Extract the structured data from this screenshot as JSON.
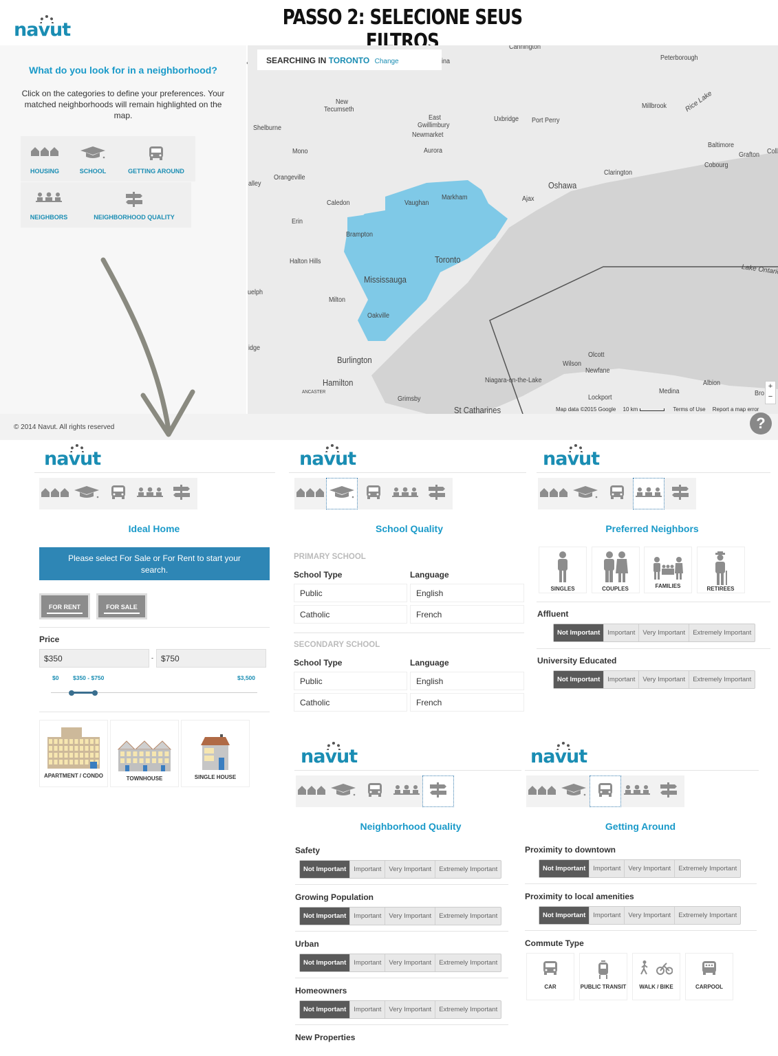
{
  "header": {
    "title": "PASSO 2: SELECIONE SEUS FILTROS",
    "logo": "navut"
  },
  "colors": {
    "brand": "#1a8db3",
    "banner": "#2e86b5",
    "highlight": "#6cc3e6",
    "selected_segment": "#5a5a5a"
  },
  "intro": {
    "heading": "What do you look for in a neighborhood?",
    "text": "Click on the categories to define your preferences. Your matched neighborhoods will remain highlighted on the map.",
    "categories": [
      {
        "label": "HOUSING",
        "icon": "houses-icon"
      },
      {
        "label": "SCHOOL",
        "icon": "graduation-cap-icon"
      },
      {
        "label": "GETTING AROUND",
        "icon": "car-icon"
      },
      {
        "label": "NEIGHBORS",
        "icon": "people-icon"
      },
      {
        "label": "NEIGHBORHOOD QUALITY",
        "icon": "signpost-icon"
      }
    ]
  },
  "map": {
    "search_prefix": "SEARCHING IN",
    "city": "TORONTO",
    "change": "Change",
    "collapse": "‹",
    "labels": [
      "Cannington",
      "Peterborough",
      "New",
      "Tecumseth",
      "East",
      "Gwillimbury",
      "Newmarket",
      "Shelburne",
      "Uxbridge",
      "Port Perry",
      "Millbrook",
      "Rice Lake",
      "Baltimore",
      "Grafton",
      "Coll",
      "Cobourg",
      "Mono",
      "Aurora",
      "Clarington",
      "Orangeville",
      "alley",
      "Oshawa",
      "Ajax",
      "Caledon",
      "Vaughan",
      "Markham",
      "Erin",
      "Brampton",
      "Halton Hills",
      "Toronto",
      "Mississauga",
      "uelph",
      "Milton",
      "Oakville",
      "idge",
      "Lake Ontario",
      "Olcott",
      "Wilson",
      "Newfane",
      "Burlington",
      "Hamilton",
      "ANCASTER",
      "Niagara-on-the-Lake",
      "Albion",
      "Medina",
      "Grimsby",
      "St Catharines",
      "Lockport",
      "Bro",
      "ina"
    ],
    "attribution": "Map data ©2015 Google",
    "scale": "10 km",
    "terms": "Terms of Use",
    "report": "Report a map error",
    "zoom_in": "+",
    "zoom_out": "−"
  },
  "footer": {
    "copyright": "© 2014 Navut. All rights reserved",
    "help": "?"
  },
  "housing": {
    "title": "Ideal Home",
    "banner": "Please select For Sale or For Rent to start your search.",
    "for_rent": "FOR RENT",
    "for_sale": "FOR SALE",
    "price_label": "Price",
    "min": "$350",
    "max": "$750",
    "dash": "-",
    "range_min": "$0",
    "range_sel": "$350 - $750",
    "range_max": "$3,500",
    "slider_low": 350,
    "slider_high": 750,
    "slider_max": 3500,
    "types": [
      "APARTMENT / CONDO",
      "TOWNHOUSE",
      "SINGLE HOUSE"
    ]
  },
  "school": {
    "title": "School Quality",
    "primary": "PRIMARY SCHOOL",
    "secondary": "SECONDARY SCHOOL",
    "type_label": "School Type",
    "lang_label": "Language",
    "types": [
      "Public",
      "Catholic"
    ],
    "langs": [
      "English",
      "French"
    ]
  },
  "neighbors": {
    "title": "Preferred Neighbors",
    "cards": [
      "SINGLES",
      "COUPLES",
      "FAMILIES",
      "RETIREES"
    ],
    "rows": [
      "Affluent",
      "University Educated"
    ]
  },
  "quality": {
    "title": "Neighborhood Quality",
    "rows": [
      "Safety",
      "Growing Population",
      "Urban",
      "Homeowners"
    ],
    "last": "New Properties"
  },
  "around": {
    "title": "Getting Around",
    "rows": [
      "Proximity to downtown",
      "Proximity to local amenities"
    ],
    "commute_label": "Commute Type",
    "commute": [
      "CAR",
      "PUBLIC TRANSIT",
      "WALK / BIKE",
      "CARPOOL"
    ]
  },
  "importance": [
    "Not Important",
    "Important",
    "Very Important",
    "Extremely Important"
  ],
  "selected_importance": "Not Important"
}
